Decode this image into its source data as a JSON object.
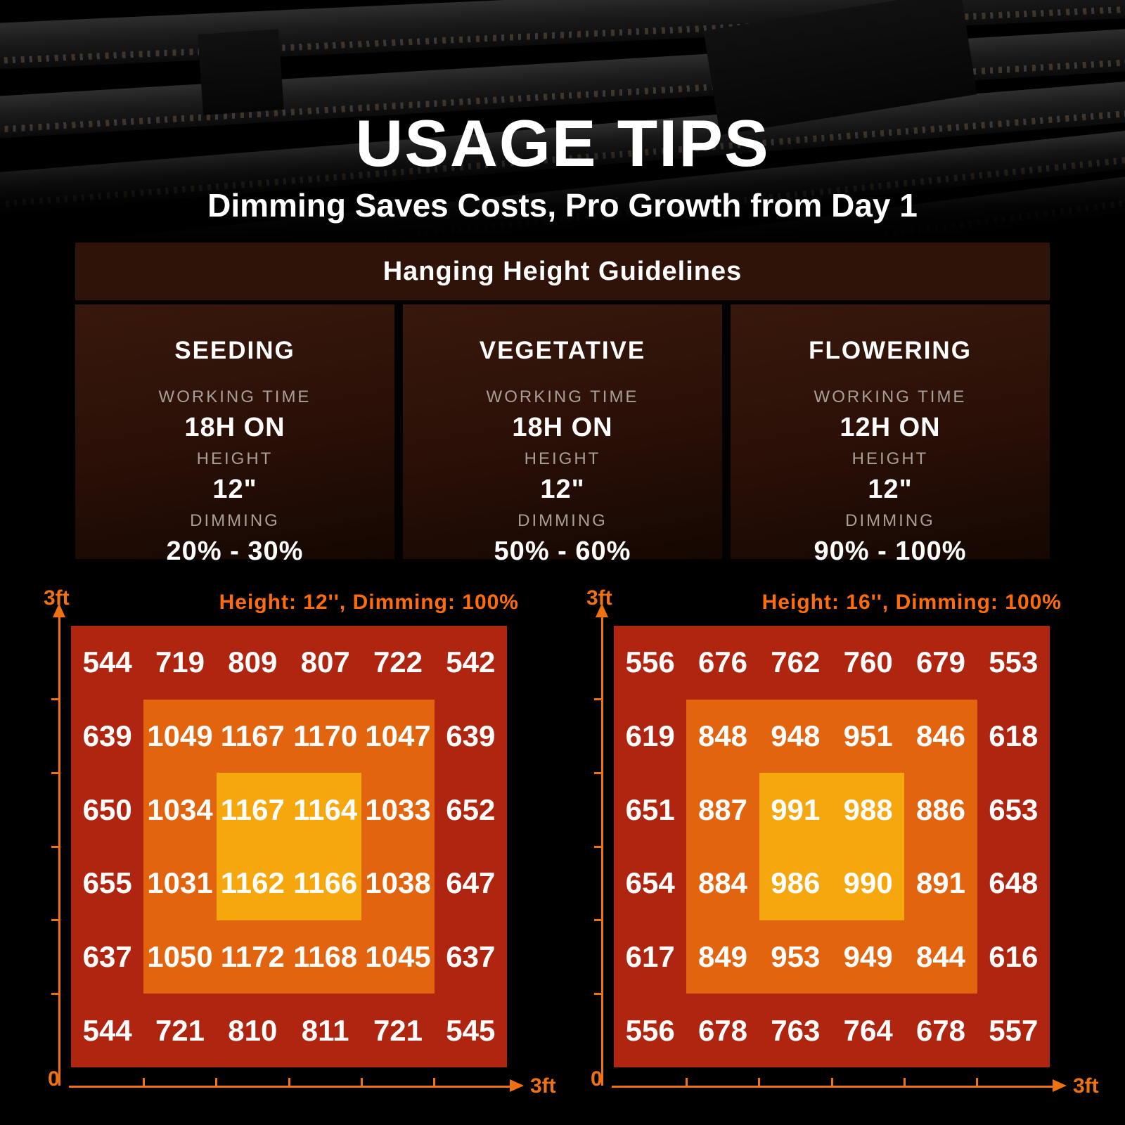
{
  "colors": {
    "zone_outer": "#b0250f",
    "zone_mid": "#e2640e",
    "zone_center": "#f6a70e",
    "axis": "#ef7110",
    "chart_title": "#ff6c0d",
    "header_bar_bg": "#2f1208",
    "card_label": "#a89f99",
    "text": "#ffffff"
  },
  "hero": {
    "title": "USAGE TIPS",
    "subtitle": "Dimming Saves Costs, Pro Growth from Day 1"
  },
  "guidelines": {
    "header": "Hanging Height Guidelines",
    "cards": [
      {
        "stage": "SEEDING",
        "working_time_label": "WORKING TIME",
        "working_time": "18H ON",
        "height_label": "HEIGHT",
        "height": "12\"",
        "dimming_label": "DIMMING",
        "dimming": "20% - 30%"
      },
      {
        "stage": "VEGETATIVE",
        "working_time_label": "WORKING TIME",
        "working_time": "18H ON",
        "height_label": "HEIGHT",
        "height": "12\"",
        "dimming_label": "DIMMING",
        "dimming": "50% - 60%"
      },
      {
        "stage": "FLOWERING",
        "working_time_label": "WORKING TIME",
        "working_time": "12H ON",
        "height_label": "HEIGHT",
        "height": "12\"",
        "dimming_label": "DIMMING",
        "dimming": "90% - 100%"
      }
    ]
  },
  "chart_data": [
    {
      "type": "heatmap",
      "title": "Height: 12'', Dimming: 100%",
      "rows": 6,
      "cols": 6,
      "x_axis": {
        "min_label": "0",
        "max_label": "3ft"
      },
      "y_axis": {
        "max_label": "3ft"
      },
      "zones": [
        {
          "name": "outer",
          "span": "full 6x6",
          "color": "#b0250f"
        },
        {
          "name": "mid",
          "span": "inner 4x4",
          "color": "#e2640e"
        },
        {
          "name": "center",
          "span": "inner 2x2",
          "color": "#f6a70e"
        }
      ],
      "values": [
        [
          544,
          719,
          809,
          807,
          722,
          542
        ],
        [
          639,
          1049,
          1167,
          1170,
          1047,
          639
        ],
        [
          650,
          1034,
          1167,
          1164,
          1033,
          652
        ],
        [
          655,
          1031,
          1162,
          1166,
          1038,
          647
        ],
        [
          637,
          1050,
          1172,
          1168,
          1045,
          637
        ],
        [
          544,
          721,
          810,
          811,
          721,
          545
        ]
      ]
    },
    {
      "type": "heatmap",
      "title": "Height: 16'', Dimming: 100%",
      "rows": 6,
      "cols": 6,
      "x_axis": {
        "min_label": "0",
        "max_label": "3ft"
      },
      "y_axis": {
        "max_label": "3ft"
      },
      "zones": [
        {
          "name": "outer",
          "span": "full 6x6",
          "color": "#b0250f"
        },
        {
          "name": "mid",
          "span": "inner 4x4",
          "color": "#e2640e"
        },
        {
          "name": "center",
          "span": "inner 2x2",
          "color": "#f6a70e"
        }
      ],
      "values": [
        [
          556,
          676,
          762,
          760,
          679,
          553
        ],
        [
          619,
          848,
          948,
          951,
          846,
          618
        ],
        [
          651,
          887,
          991,
          988,
          886,
          653
        ],
        [
          654,
          884,
          986,
          990,
          891,
          648
        ],
        [
          617,
          849,
          953,
          949,
          844,
          616
        ],
        [
          556,
          678,
          763,
          764,
          678,
          557
        ]
      ]
    }
  ]
}
